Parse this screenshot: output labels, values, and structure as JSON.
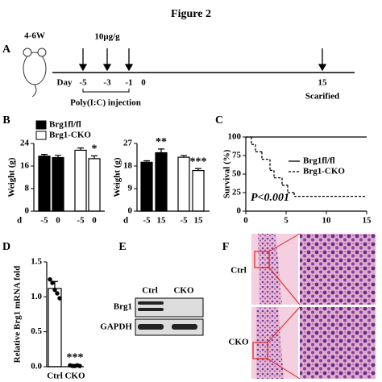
{
  "figure_title": "Figure 2",
  "panel_labels": [
    "A",
    "B",
    "C",
    "D",
    "E",
    "F"
  ],
  "timeline": {
    "age": "4-6W",
    "dose": "10μg/g",
    "day_label": "Day",
    "days": [
      "-5",
      "-3",
      "-1",
      "0",
      "15"
    ],
    "injection": "Poly(I:C) injection",
    "endpoint": "Scarified"
  },
  "chart_data": [
    {
      "type": "bar",
      "ylabel": "Weight (g)",
      "xlabel": "d",
      "categories": [
        "-5",
        "0",
        "-5",
        "0"
      ],
      "series": [
        {
          "name": "Brg1fl/fl",
          "color": "#000000",
          "values": [
            19.5,
            19.0,
            null,
            null
          ],
          "errors": [
            0.6,
            0.8,
            null,
            null
          ]
        },
        {
          "name": "Brg1-CKO",
          "color": "#ffffff",
          "values": [
            null,
            null,
            21.6,
            18.6
          ],
          "errors": [
            null,
            null,
            0.8,
            1.0
          ]
        }
      ],
      "significance": [
        null,
        null,
        null,
        "*"
      ],
      "ylim": [
        0,
        24
      ],
      "yticks": [
        0,
        8,
        16,
        24
      ]
    },
    {
      "type": "bar",
      "ylabel": "Weight (g)",
      "xlabel": "d",
      "categories": [
        "-5",
        "15",
        "-5",
        "15"
      ],
      "series": [
        {
          "color": "#000000",
          "values": [
            19.5,
            23.3,
            null,
            null
          ],
          "errors": [
            0.6,
            1.5,
            null,
            null
          ]
        },
        {
          "color": "#ffffff",
          "values": [
            null,
            null,
            21.5,
            16.2
          ],
          "errors": [
            null,
            null,
            0.7,
            0.8
          ]
        }
      ],
      "significance": [
        null,
        "**",
        null,
        "***"
      ],
      "ylim": [
        0,
        27
      ],
      "yticks": [
        0,
        9,
        18,
        27
      ]
    },
    {
      "type": "line",
      "ylabel": "Survival (%)",
      "annotation": "P<0.001",
      "step": true,
      "xlim": [
        0,
        15
      ],
      "ylim": [
        0,
        100
      ],
      "xticks": [
        0,
        5,
        10,
        15
      ],
      "yticks": [
        0,
        25,
        50,
        75,
        100
      ],
      "series": [
        {
          "name": "Brg1fl/fl",
          "color": "#000000",
          "dash": false,
          "x": [
            0,
            15
          ],
          "values": [
            100,
            100
          ]
        },
        {
          "name": "Brg1-CKO",
          "color": "#000000",
          "dash": true,
          "x": [
            0,
            0.7,
            1.2,
            2,
            3,
            3.5,
            4.5,
            5.2,
            6,
            15
          ],
          "values": [
            100,
            90,
            80,
            70,
            55,
            45,
            35,
            25,
            20,
            20
          ]
        }
      ]
    },
    {
      "type": "bar",
      "ylabel": "Relative Brg1 mRNA fold",
      "categories": [
        "Ctrl",
        "CKO"
      ],
      "series": [
        {
          "color": "#ffffff",
          "values": [
            1.12,
            0.02
          ],
          "errors": [
            0.1,
            0.01
          ],
          "points": [
            [
              1.25,
              1.2,
              1.1,
              1.05,
              0.98
            ],
            [
              0.02,
              0.01,
              0.01,
              0.02,
              0.01
            ]
          ]
        }
      ],
      "significance": [
        null,
        "***"
      ],
      "ylim": [
        0,
        1.5
      ],
      "yticks": [
        {
          "value": 0,
          "label": "0.0"
        },
        0.5,
        {
          "value": 1,
          "label": "1.0"
        },
        1.5
      ]
    }
  ],
  "blot": {
    "lanes": [
      "Ctrl",
      "CKO"
    ],
    "rows": [
      "Brg1",
      "GAPDH"
    ]
  },
  "histology": {
    "rows": [
      "Ctrl",
      "CKO"
    ]
  }
}
